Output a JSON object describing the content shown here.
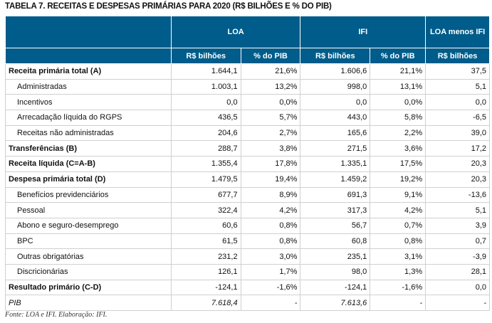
{
  "title": "TABELA 7. RECEITAS E DESPESAS PRIMÁRIAS PARA 2020 (R$ BILHÕES E % DO PIB)",
  "header": {
    "groups": [
      "LOA",
      "IFI",
      "LOA menos IFI"
    ],
    "sub": [
      "R$ bilhões",
      "% do PIB",
      "R$ bilhões",
      "% do PIB",
      "R$ bilhões"
    ]
  },
  "rows": [
    {
      "label": "Receita primária total (A)",
      "style": "bold",
      "values": [
        "1.644,1",
        "21,6%",
        "1.606,6",
        "21,1%",
        "37,5"
      ]
    },
    {
      "label": "Administradas",
      "style": "sub",
      "values": [
        "1.003,1",
        "13,2%",
        "998,0",
        "13,1%",
        "5,1"
      ]
    },
    {
      "label": "Incentivos",
      "style": "sub",
      "values": [
        "0,0",
        "0,0%",
        "0,0",
        "0,0%",
        "0,0"
      ]
    },
    {
      "label": "Arrecadação líquida do RGPS",
      "style": "sub",
      "values": [
        "436,5",
        "5,7%",
        "443,0",
        "5,8%",
        "-6,5"
      ]
    },
    {
      "label": "Receitas não administradas",
      "style": "sub",
      "values": [
        "204,6",
        "2,7%",
        "165,6",
        "2,2%",
        "39,0"
      ]
    },
    {
      "label": "Transferências (B)",
      "style": "bold",
      "values": [
        "288,7",
        "3,8%",
        "271,5",
        "3,6%",
        "17,2"
      ]
    },
    {
      "label": "Receita líquida (C=A-B)",
      "style": "bold",
      "values": [
        "1.355,4",
        "17,8%",
        "1.335,1",
        "17,5%",
        "20,3"
      ]
    },
    {
      "label": "Despesa primária total (D)",
      "style": "bold",
      "values": [
        "1.479,5",
        "19,4%",
        "1.459,2",
        "19,2%",
        "20,3"
      ]
    },
    {
      "label": "Benefícios previdenciários",
      "style": "sub",
      "values": [
        "677,7",
        "8,9%",
        "691,3",
        "9,1%",
        "-13,6"
      ]
    },
    {
      "label": "Pessoal",
      "style": "sub",
      "values": [
        "322,4",
        "4,2%",
        "317,3",
        "4,2%",
        "5,1"
      ]
    },
    {
      "label": "Abono e seguro-desemprego",
      "style": "sub",
      "values": [
        "60,6",
        "0,8%",
        "56,7",
        "0,7%",
        "3,9"
      ]
    },
    {
      "label": "BPC",
      "style": "sub",
      "values": [
        "61,5",
        "0,8%",
        "60,8",
        "0,8%",
        "0,7"
      ]
    },
    {
      "label": "Outras obrigatórias",
      "style": "sub",
      "values": [
        "231,2",
        "3,0%",
        "235,1",
        "3,1%",
        "-3,9"
      ]
    },
    {
      "label": "Discricionárias",
      "style": "sub",
      "values": [
        "126,1",
        "1,7%",
        "98,0",
        "1,3%",
        "28,1"
      ]
    },
    {
      "label": "Resultado primário (C-D)",
      "style": "bold",
      "values": [
        "-124,1",
        "-1,6%",
        "-124,1",
        "-1,6%",
        "0,0"
      ]
    },
    {
      "label": "PIB",
      "style": "italic",
      "values": [
        "7.618,4",
        "-",
        "7.613,6",
        "-",
        "-"
      ]
    }
  ],
  "source": "Fonte: LOA e IFI. Elaboração: IFI."
}
